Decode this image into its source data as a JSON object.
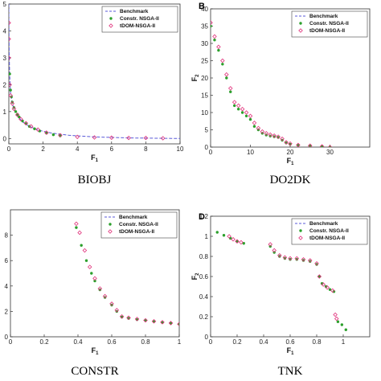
{
  "legend_labels": [
    "Benchmark",
    "Constr. NSGA-II",
    "tDOM-NSGA-II"
  ],
  "colors": {
    "benchmark": "#5a5ad8",
    "constr": "#2ca02c",
    "tdom": "#e0307a"
  },
  "chart_data": [
    {
      "type": "scatter",
      "panel_letter": "",
      "caption": "BIOBJ",
      "xlabel": "F",
      "xlabel_sub": "1",
      "ylabel": "",
      "ylabel_sub": "",
      "xlim": [
        0,
        10
      ],
      "ylim": [
        -0.2,
        5
      ],
      "xticks": [
        0,
        2,
        4,
        6,
        8,
        10
      ],
      "yticks": [
        0,
        1,
        2,
        3,
        4,
        5
      ],
      "legend_position": "top-right",
      "series": [
        {
          "name": "Benchmark",
          "style": "dashed",
          "x": [
            0,
            0,
            0.02,
            0.05,
            0.1,
            0.2,
            0.3,
            0.5,
            0.8,
            1.2,
            1.8,
            2.5,
            3.5,
            5,
            7,
            10
          ],
          "y": [
            5,
            4.5,
            3.2,
            2.3,
            1.7,
            1.3,
            1.1,
            0.85,
            0.62,
            0.45,
            0.3,
            0.2,
            0.12,
            0.06,
            0.02,
            0
          ]
        },
        {
          "name": "Constr. NSGA-II",
          "style": "dot",
          "x": [
            0.05,
            0.1,
            0.15,
            0.2,
            0.3,
            0.4,
            0.5,
            0.6,
            0.8,
            1.0,
            1.2,
            1.5,
            1.8,
            2.2,
            2.6,
            3.0
          ],
          "y": [
            2.4,
            1.8,
            1.55,
            1.35,
            1.15,
            1.0,
            0.9,
            0.8,
            0.65,
            0.55,
            0.45,
            0.36,
            0.28,
            0.2,
            0.14,
            0.1
          ]
        },
        {
          "name": "tDOM-NSGA-II",
          "style": "diamond",
          "x": [
            0,
            0,
            0,
            0.05,
            0.1,
            0.2,
            0.3,
            0.5,
            0.7,
            1.0,
            1.3,
            1.7,
            2.2,
            3.0,
            4.0,
            5.0,
            6.0,
            7.0,
            8.0,
            9.0
          ],
          "y": [
            4.3,
            3.7,
            3.0,
            2.0,
            1.6,
            1.3,
            1.1,
            0.88,
            0.72,
            0.57,
            0.45,
            0.33,
            0.22,
            0.12,
            0.06,
            0.04,
            0.03,
            0.02,
            0.02,
            0.01
          ]
        }
      ]
    },
    {
      "type": "scatter",
      "panel_letter": "B",
      "caption": "DO2DK",
      "xlabel": "F",
      "xlabel_sub": "1",
      "ylabel": "F",
      "ylabel_sub": "2",
      "xlim": [
        0,
        40
      ],
      "ylim": [
        0,
        40
      ],
      "xticks": [
        0,
        10,
        20,
        30
      ],
      "yticks": [
        0,
        5,
        10,
        15,
        20,
        25,
        30,
        35,
        40
      ],
      "legend_position": "top-right",
      "series": [
        {
          "name": "Benchmark",
          "style": "dashed",
          "x": [],
          "y": []
        },
        {
          "name": "Constr. NSGA-II",
          "style": "dot",
          "x": [
            0,
            1,
            2,
            3,
            4,
            5,
            6,
            7,
            8,
            9,
            10,
            11,
            12,
            13,
            14,
            15,
            16,
            17,
            18,
            19,
            20,
            22,
            25,
            28,
            30
          ],
          "y": [
            35,
            31,
            28,
            24,
            20,
            16,
            12,
            11,
            10,
            9,
            8,
            6,
            5,
            4,
            3.5,
            3.2,
            3,
            2.8,
            2,
            1.2,
            0.8,
            0.5,
            0.3,
            0.2,
            0
          ]
        },
        {
          "name": "tDOM-NSGA-II",
          "style": "diamond",
          "x": [
            0,
            1,
            2,
            3,
            4,
            5,
            6,
            7,
            8,
            9,
            10,
            11,
            12,
            13,
            14,
            15,
            16,
            17,
            18,
            19,
            20,
            22,
            25,
            28,
            30
          ],
          "y": [
            36,
            32,
            29,
            25,
            21,
            17,
            13,
            12,
            11,
            10,
            9,
            7,
            5.5,
            4.5,
            4,
            3.6,
            3.3,
            3,
            2.4,
            1.4,
            1,
            0.6,
            0.4,
            0.2,
            0
          ]
        }
      ]
    },
    {
      "type": "scatter",
      "panel_letter": "",
      "caption": "CONSTR",
      "xlabel": "F",
      "xlabel_sub": "1",
      "ylabel": "",
      "ylabel_sub": "",
      "xlim": [
        0,
        1
      ],
      "ylim": [
        0,
        10
      ],
      "xticks": [
        0,
        0.2,
        0.4,
        0.6,
        0.8,
        1
      ],
      "yticks": [
        0,
        2,
        4,
        6,
        8
      ],
      "legend_position": "top-right",
      "series": [
        {
          "name": "Benchmark",
          "style": "dashed",
          "x": [],
          "y": []
        },
        {
          "name": "Constr. NSGA-II",
          "style": "dot",
          "x": [
            0.39,
            0.42,
            0.45,
            0.48,
            0.5,
            0.53,
            0.56,
            0.6,
            0.63,
            0.66,
            0.7,
            0.75,
            0.8,
            0.85,
            0.9,
            0.95,
            1.0
          ],
          "y": [
            8.6,
            7.2,
            6.0,
            5.0,
            4.4,
            3.7,
            3.1,
            2.5,
            2.0,
            1.55,
            1.45,
            1.35,
            1.28,
            1.2,
            1.12,
            1.06,
            1.0
          ]
        },
        {
          "name": "tDOM-NSGA-II",
          "style": "diamond",
          "x": [
            0.39,
            0.41,
            0.44,
            0.47,
            0.5,
            0.53,
            0.56,
            0.6,
            0.63,
            0.66,
            0.7,
            0.75,
            0.8,
            0.85,
            0.9,
            0.95,
            1.0
          ],
          "y": [
            8.9,
            8.2,
            6.8,
            5.5,
            4.6,
            3.8,
            3.2,
            2.6,
            2.1,
            1.6,
            1.5,
            1.4,
            1.3,
            1.22,
            1.15,
            1.08,
            1.0
          ]
        }
      ]
    },
    {
      "type": "scatter",
      "panel_letter": "D",
      "caption": "TNK",
      "xlabel": "F",
      "xlabel_sub": "1",
      "ylabel": "F",
      "ylabel_sub": "2",
      "xlim": [
        0,
        1.2
      ],
      "ylim": [
        0,
        1.2
      ],
      "xticks": [
        0,
        0.2,
        0.4,
        0.6,
        0.8,
        1
      ],
      "yticks": [
        0,
        0.2,
        0.4,
        0.6,
        0.8,
        1,
        1.2
      ],
      "legend_position": "top-right",
      "series": [
        {
          "name": "Benchmark",
          "style": "dashed",
          "x": [],
          "y": []
        },
        {
          "name": "Constr. NSGA-II",
          "style": "dot",
          "x": [
            0.05,
            0.1,
            0.15,
            0.2,
            0.25,
            0.45,
            0.48,
            0.52,
            0.56,
            0.6,
            0.65,
            0.7,
            0.75,
            0.8,
            0.82,
            0.84,
            0.87,
            0.9,
            0.93,
            0.96,
            0.99,
            1.02
          ],
          "y": [
            1.04,
            1.01,
            0.98,
            0.95,
            0.93,
            0.9,
            0.84,
            0.8,
            0.78,
            0.77,
            0.77,
            0.76,
            0.75,
            0.72,
            0.6,
            0.53,
            0.5,
            0.47,
            0.45,
            0.15,
            0.12,
            0.07
          ]
        },
        {
          "name": "tDOM-NSGA-II",
          "style": "diamond",
          "x": [
            0.14,
            0.17,
            0.2,
            0.23,
            0.45,
            0.48,
            0.52,
            0.56,
            0.6,
            0.65,
            0.7,
            0.75,
            0.8,
            0.82,
            0.85,
            0.88,
            0.92,
            0.94,
            0.95
          ],
          "y": [
            1.0,
            0.97,
            0.95,
            0.94,
            0.92,
            0.86,
            0.81,
            0.79,
            0.78,
            0.78,
            0.77,
            0.76,
            0.73,
            0.6,
            0.52,
            0.49,
            0.46,
            0.22,
            0.18
          ]
        }
      ]
    }
  ]
}
